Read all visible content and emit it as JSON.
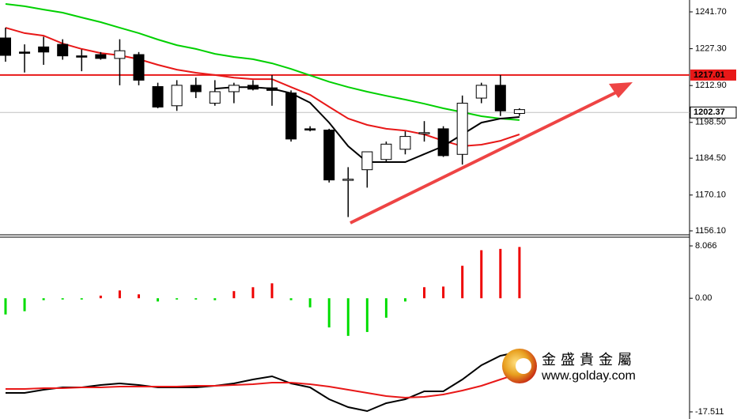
{
  "chart_data": [
    {
      "type": "candlestick",
      "open": [
        1231.5,
        1226,
        1228,
        1229,
        1224.5,
        1225,
        1223.5,
        1225,
        1212.5,
        1205,
        1213,
        1206,
        1210.5,
        1213,
        1212,
        1210,
        1196,
        1195.5,
        1176,
        1180,
        1184,
        1188,
        1194.5,
        1196,
        1186,
        1208,
        1213,
        1202
      ],
      "high": [
        1235.5,
        1229,
        1232,
        1231,
        1227,
        1226,
        1231,
        1226,
        1214,
        1215,
        1216,
        1215,
        1214,
        1215,
        1217,
        1211,
        1197,
        1196,
        1181,
        1187,
        1191,
        1195,
        1199,
        1197,
        1209,
        1214,
        1217,
        1204
      ],
      "low": [
        1222.2,
        1218,
        1221,
        1223,
        1218.5,
        1223,
        1213,
        1213,
        1204,
        1203,
        1208,
        1205,
        1206,
        1211,
        1205,
        1191,
        1195,
        1175,
        1161.5,
        1173,
        1183,
        1186,
        1191,
        1185,
        1182,
        1206,
        1201,
        1201
      ],
      "close": [
        1224.7,
        1225.5,
        1226,
        1224.5,
        1224,
        1223.5,
        1226.5,
        1215,
        1204.5,
        1213,
        1210.5,
        1210.5,
        1213,
        1211.5,
        1211,
        1192,
        1195.5,
        1176,
        1176.3,
        1187,
        1190,
        1193,
        1194.5,
        1185.5,
        1206,
        1213,
        1203,
        1203.5
      ],
      "up_color": "#ffffff",
      "down_color": "#000000",
      "series": [
        {
          "color": "#00d000",
          "values": [
            1244.8,
            1243.9,
            1242.6,
            1241.4,
            1239.5,
            1237.7,
            1235.5,
            1233.4,
            1230.9,
            1228.7,
            1227.2,
            1225.3,
            1224.1,
            1223.2,
            1221.6,
            1219.4,
            1216.9,
            1214.4,
            1212.3,
            1210.5,
            1208.9,
            1207.4,
            1205.8,
            1204.0,
            1202.5,
            1200.9,
            1200.0,
            1199.4
          ]
        },
        {
          "color": "#e81818",
          "values": [
            1235.5,
            1233.4,
            1232.4,
            1229.3,
            1227.2,
            1225.6,
            1224.7,
            1223.2,
            1221.0,
            1219.1,
            1217.9,
            1217.0,
            1216.0,
            1215.4,
            1215.4,
            1212.3,
            1209.3,
            1204.6,
            1200.0,
            1197.5,
            1196.0,
            1195.3,
            1193.8,
            1191.3,
            1189.2,
            1189.8,
            1191.3,
            1193.8
          ]
        },
        {
          "color": "#000000",
          "values": [
            null,
            null,
            null,
            null,
            null,
            null,
            null,
            null,
            null,
            null,
            null,
            1211.7,
            1212.3,
            1212.3,
            1211.7,
            1209.9,
            1206.2,
            1198.4,
            1189.2,
            1183.0,
            1183.0,
            1183.0,
            1186.1,
            1189.2,
            1193.8,
            1198.4,
            1200.0,
            1200.6
          ]
        }
      ],
      "hlines": [
        {
          "value": 1217.01,
          "color": "#e81818"
        },
        {
          "value": 1202.37,
          "color": "#c0c0c0"
        }
      ],
      "ylim": [
        1154.56,
        1246.34
      ],
      "yticks": [
        {
          "value": 1241.7,
          "label": "1241.70"
        },
        {
          "value": 1227.3,
          "label": "1227.30"
        },
        {
          "value": 1212.9,
          "label": "1212.90"
        },
        {
          "value": 1198.5,
          "label": "1198.50"
        },
        {
          "value": 1184.5,
          "label": "1184.50"
        },
        {
          "value": 1170.1,
          "label": "1170.10"
        },
        {
          "value": 1156.1,
          "label": "1156.10"
        }
      ]
    },
    {
      "type": "macd",
      "values": [
        -2.5,
        -2.0,
        -0.3,
        -0.2,
        -0.2,
        0.4,
        1.2,
        0.6,
        -0.5,
        -0.2,
        -0.2,
        -0.3,
        1.1,
        1.7,
        2.3,
        -0.3,
        -1.4,
        -4.5,
        -5.8,
        -5.2,
        -3.0,
        -0.5,
        1.7,
        1.8,
        5.0,
        7.4,
        7.6,
        7.9
      ],
      "pos_color": "#ee0000",
      "neg_color": "#00dd00",
      "series": [
        {
          "color": "#000000",
          "values": [
            -14.59,
            -14.59,
            -14.1,
            -13.74,
            -13.74,
            -13.37,
            -13.13,
            -13.37,
            -13.74,
            -13.74,
            -13.74,
            -13.49,
            -13.13,
            -12.52,
            -12.03,
            -13.13,
            -13.74,
            -15.56,
            -16.78,
            -17.39,
            -16.17,
            -15.56,
            -14.35,
            -14.35,
            -12.52,
            -10.33,
            -8.86,
            -8.25
          ]
        },
        {
          "color": "#e81818",
          "values": [
            -13.98,
            -13.98,
            -13.86,
            -13.86,
            -13.74,
            -13.74,
            -13.61,
            -13.61,
            -13.61,
            -13.61,
            -13.49,
            -13.49,
            -13.37,
            -13.25,
            -13.01,
            -13.01,
            -13.25,
            -13.61,
            -14.1,
            -14.59,
            -15.08,
            -15.32,
            -15.2,
            -14.83,
            -14.22,
            -13.49,
            -12.52,
            -11.54
          ]
        }
      ],
      "ylim": [
        -18.61,
        9.41
      ],
      "yticks": [
        8.066,
        {
          "value": 0,
          "label": "0.00"
        },
        -17.511
      ]
    }
  ],
  "watermark": {
    "name": "金盛貴金屬",
    "url": "www.golday.com"
  }
}
